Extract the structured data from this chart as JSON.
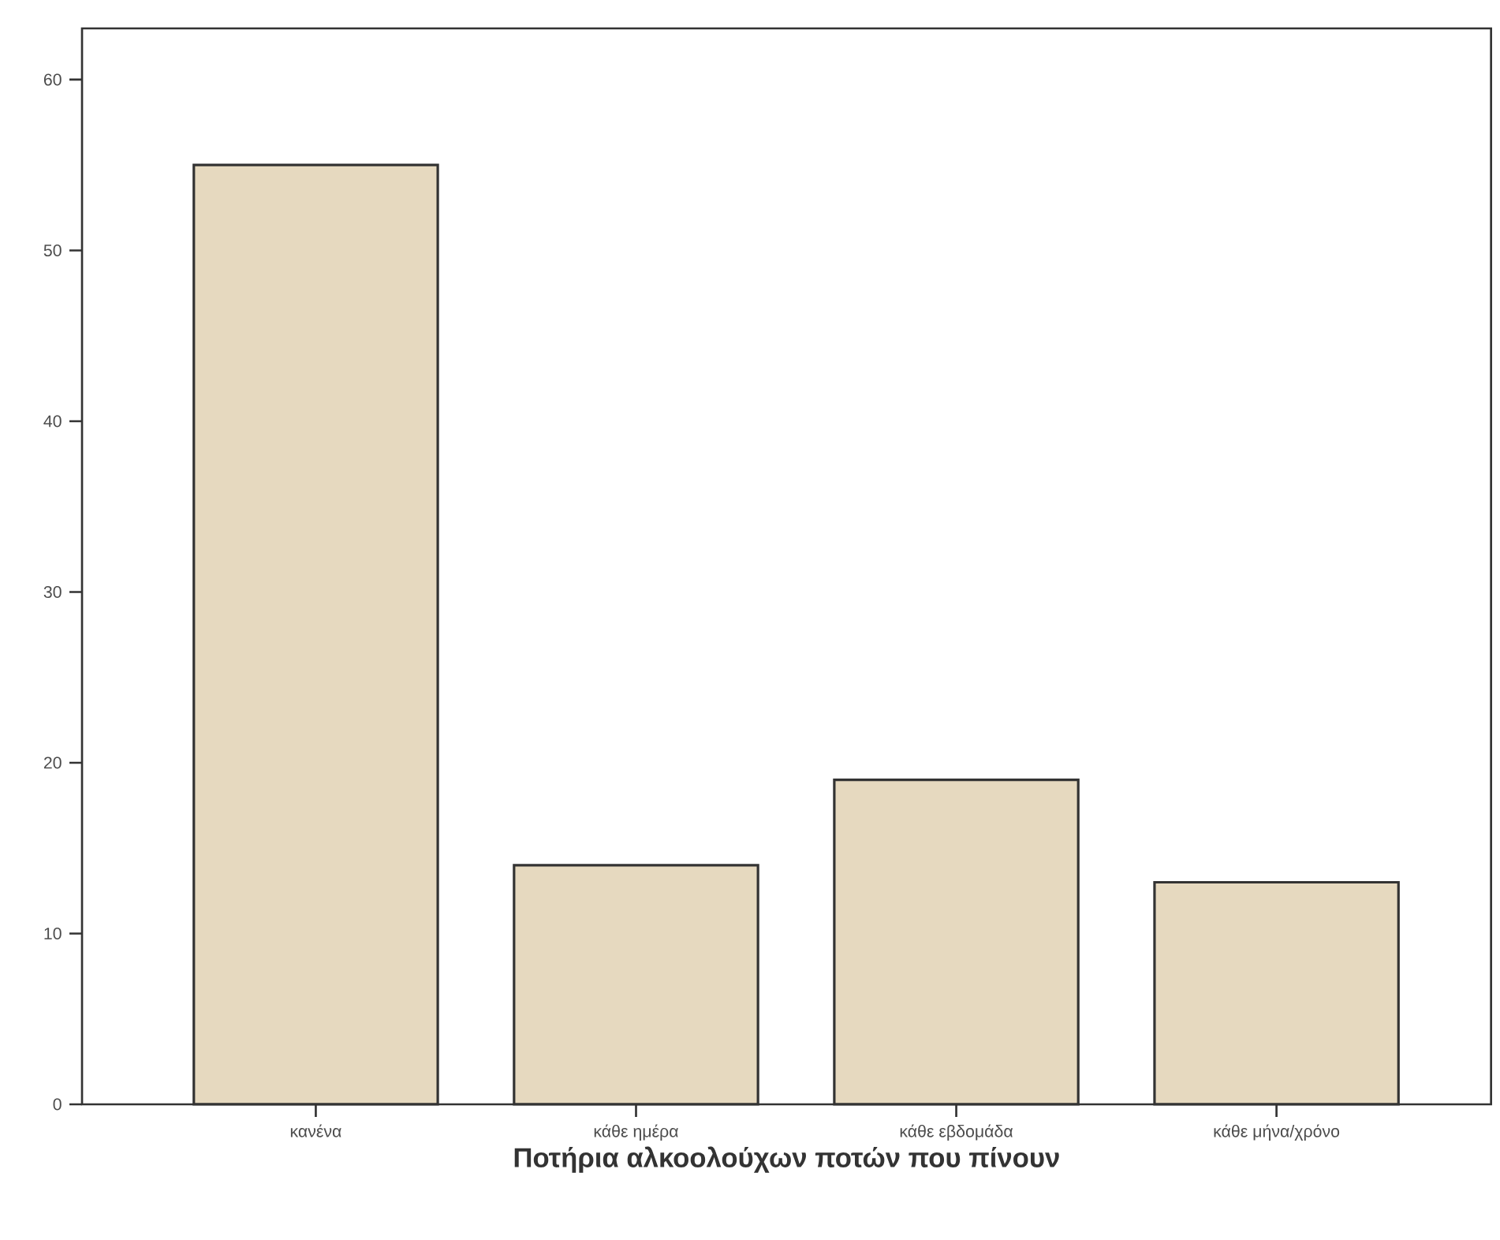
{
  "chart_data": {
    "type": "bar",
    "xlabel": "Ποτήρια αλκοολούχων ποτών που πίνουν",
    "categories": [
      "κανένα",
      "κάθε ημέρα",
      "κάθε εβδομάδα",
      "κάθε μήνα/χρόνο"
    ],
    "values": [
      55,
      14,
      19,
      13
    ],
    "color": "#e6d9bf",
    "ylim": [
      0,
      63
    ],
    "yticks": [
      0,
      10,
      20,
      30,
      40,
      50,
      60
    ],
    "grid": false
  }
}
